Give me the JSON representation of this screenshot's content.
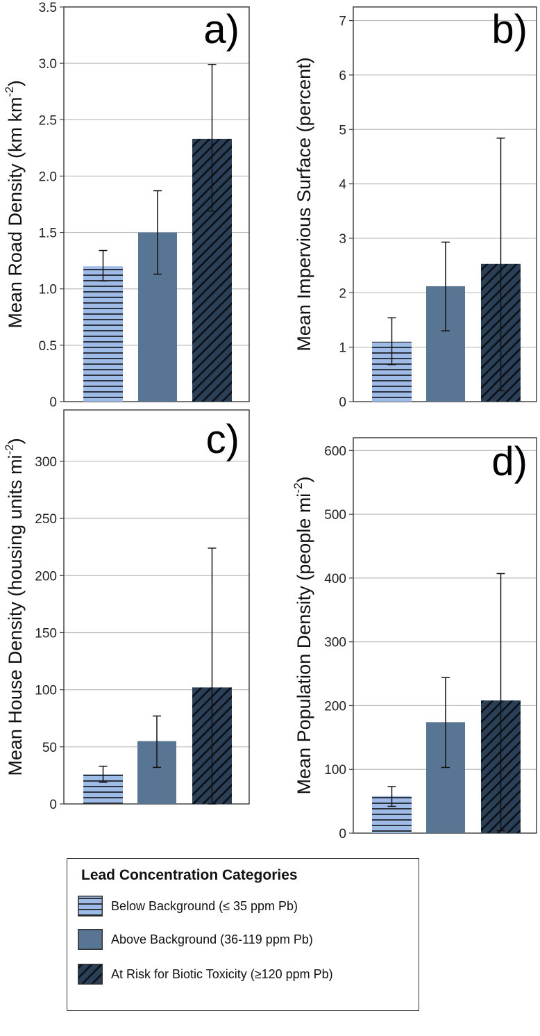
{
  "colors": {
    "below": "#9dbbe6",
    "above": "#587694",
    "risk": "#2b3f57",
    "grid": "#bdbdbd",
    "axis": "#444444",
    "error": "#111111"
  },
  "legend": {
    "title": "Lead Concentration Categories",
    "items": [
      {
        "label": "Below Background (≤ 35 ppm Pb)",
        "pattern": "horizontal-lines"
      },
      {
        "label": "Above Background (36-119 ppm Pb)",
        "pattern": "solid"
      },
      {
        "label": "At Risk for Biotic Toxicity (≥120 ppm Pb)",
        "pattern": "diagonal-lines"
      }
    ]
  },
  "chart_data": [
    {
      "type": "bar",
      "panel": "a)",
      "ylabel": "Mean Road Density (km km",
      "ylabel_sup": "-2",
      "ylabel_end": ")",
      "ylim": [
        0,
        3.5
      ],
      "yticks": [
        0,
        0.5,
        1.0,
        1.5,
        2.0,
        2.5,
        3.0,
        3.5
      ],
      "yticklabels": [
        "0",
        "0.5",
        "1.0",
        "1.5",
        "2.0",
        "2.5",
        "3.0",
        "3.5"
      ],
      "categories": [
        "Below Background (≤ 35 ppm Pb)",
        "Above Background (36-119 ppm Pb)",
        "At Risk for Biotic Toxicity (≥120 ppm Pb)"
      ],
      "values": [
        1.2,
        1.5,
        2.33
      ],
      "error_low": [
        1.07,
        1.13,
        1.69
      ],
      "error_high": [
        1.34,
        1.87,
        2.99
      ]
    },
    {
      "type": "bar",
      "panel": "b)",
      "ylabel": "Mean Impervious Surface (percent)",
      "ylabel_sup": "",
      "ylabel_end": "",
      "ylim": [
        0,
        7.25
      ],
      "yticks": [
        0,
        1,
        2,
        3,
        4,
        5,
        6,
        7
      ],
      "yticklabels": [
        "0",
        "1",
        "2",
        "3",
        "4",
        "5",
        "6",
        "7"
      ],
      "categories": [
        "Below Background (≤ 35 ppm Pb)",
        "Above Background (36-119 ppm Pb)",
        "At Risk for Biotic Toxicity (≥120 ppm Pb)"
      ],
      "values": [
        1.1,
        2.12,
        2.53
      ],
      "error_low": [
        0.68,
        1.3,
        0.2
      ],
      "error_high": [
        1.54,
        2.93,
        4.84
      ]
    },
    {
      "type": "bar",
      "panel": "c)",
      "ylabel": "Mean House Density (housing units mi",
      "ylabel_sup": "-2",
      "ylabel_end": ")",
      "ylim": [
        0,
        345
      ],
      "yticks": [
        0,
        50,
        100,
        150,
        200,
        250,
        300
      ],
      "yticklabels": [
        "0",
        "50",
        "100",
        "150",
        "200",
        "250",
        "300"
      ],
      "categories": [
        "Below Background (≤ 35 ppm Pb)",
        "Above Background (36-119 ppm Pb)",
        "At Risk for Biotic Toxicity (≥120 ppm Pb)"
      ],
      "values": [
        26,
        55,
        102
      ],
      "error_low": [
        19,
        32,
        0
      ],
      "error_high": [
        33,
        77,
        224
      ]
    },
    {
      "type": "bar",
      "panel": "d)",
      "ylabel": "Mean Population Density (people mi",
      "ylabel_sup": "-2",
      "ylabel_end": ")",
      "ylim": [
        0,
        620
      ],
      "yticks": [
        0,
        100,
        200,
        300,
        400,
        500,
        600
      ],
      "yticklabels": [
        "0",
        "100",
        "200",
        "300",
        "400",
        "500",
        "600"
      ],
      "categories": [
        "Below Background (≤ 35 ppm Pb)",
        "Above Background (36-119 ppm Pb)",
        "At Risk for Biotic Toxicity (≥120 ppm Pb)"
      ],
      "values": [
        58,
        174,
        208
      ],
      "error_low": [
        42,
        103,
        4
      ],
      "error_high": [
        73,
        244,
        407
      ]
    }
  ]
}
